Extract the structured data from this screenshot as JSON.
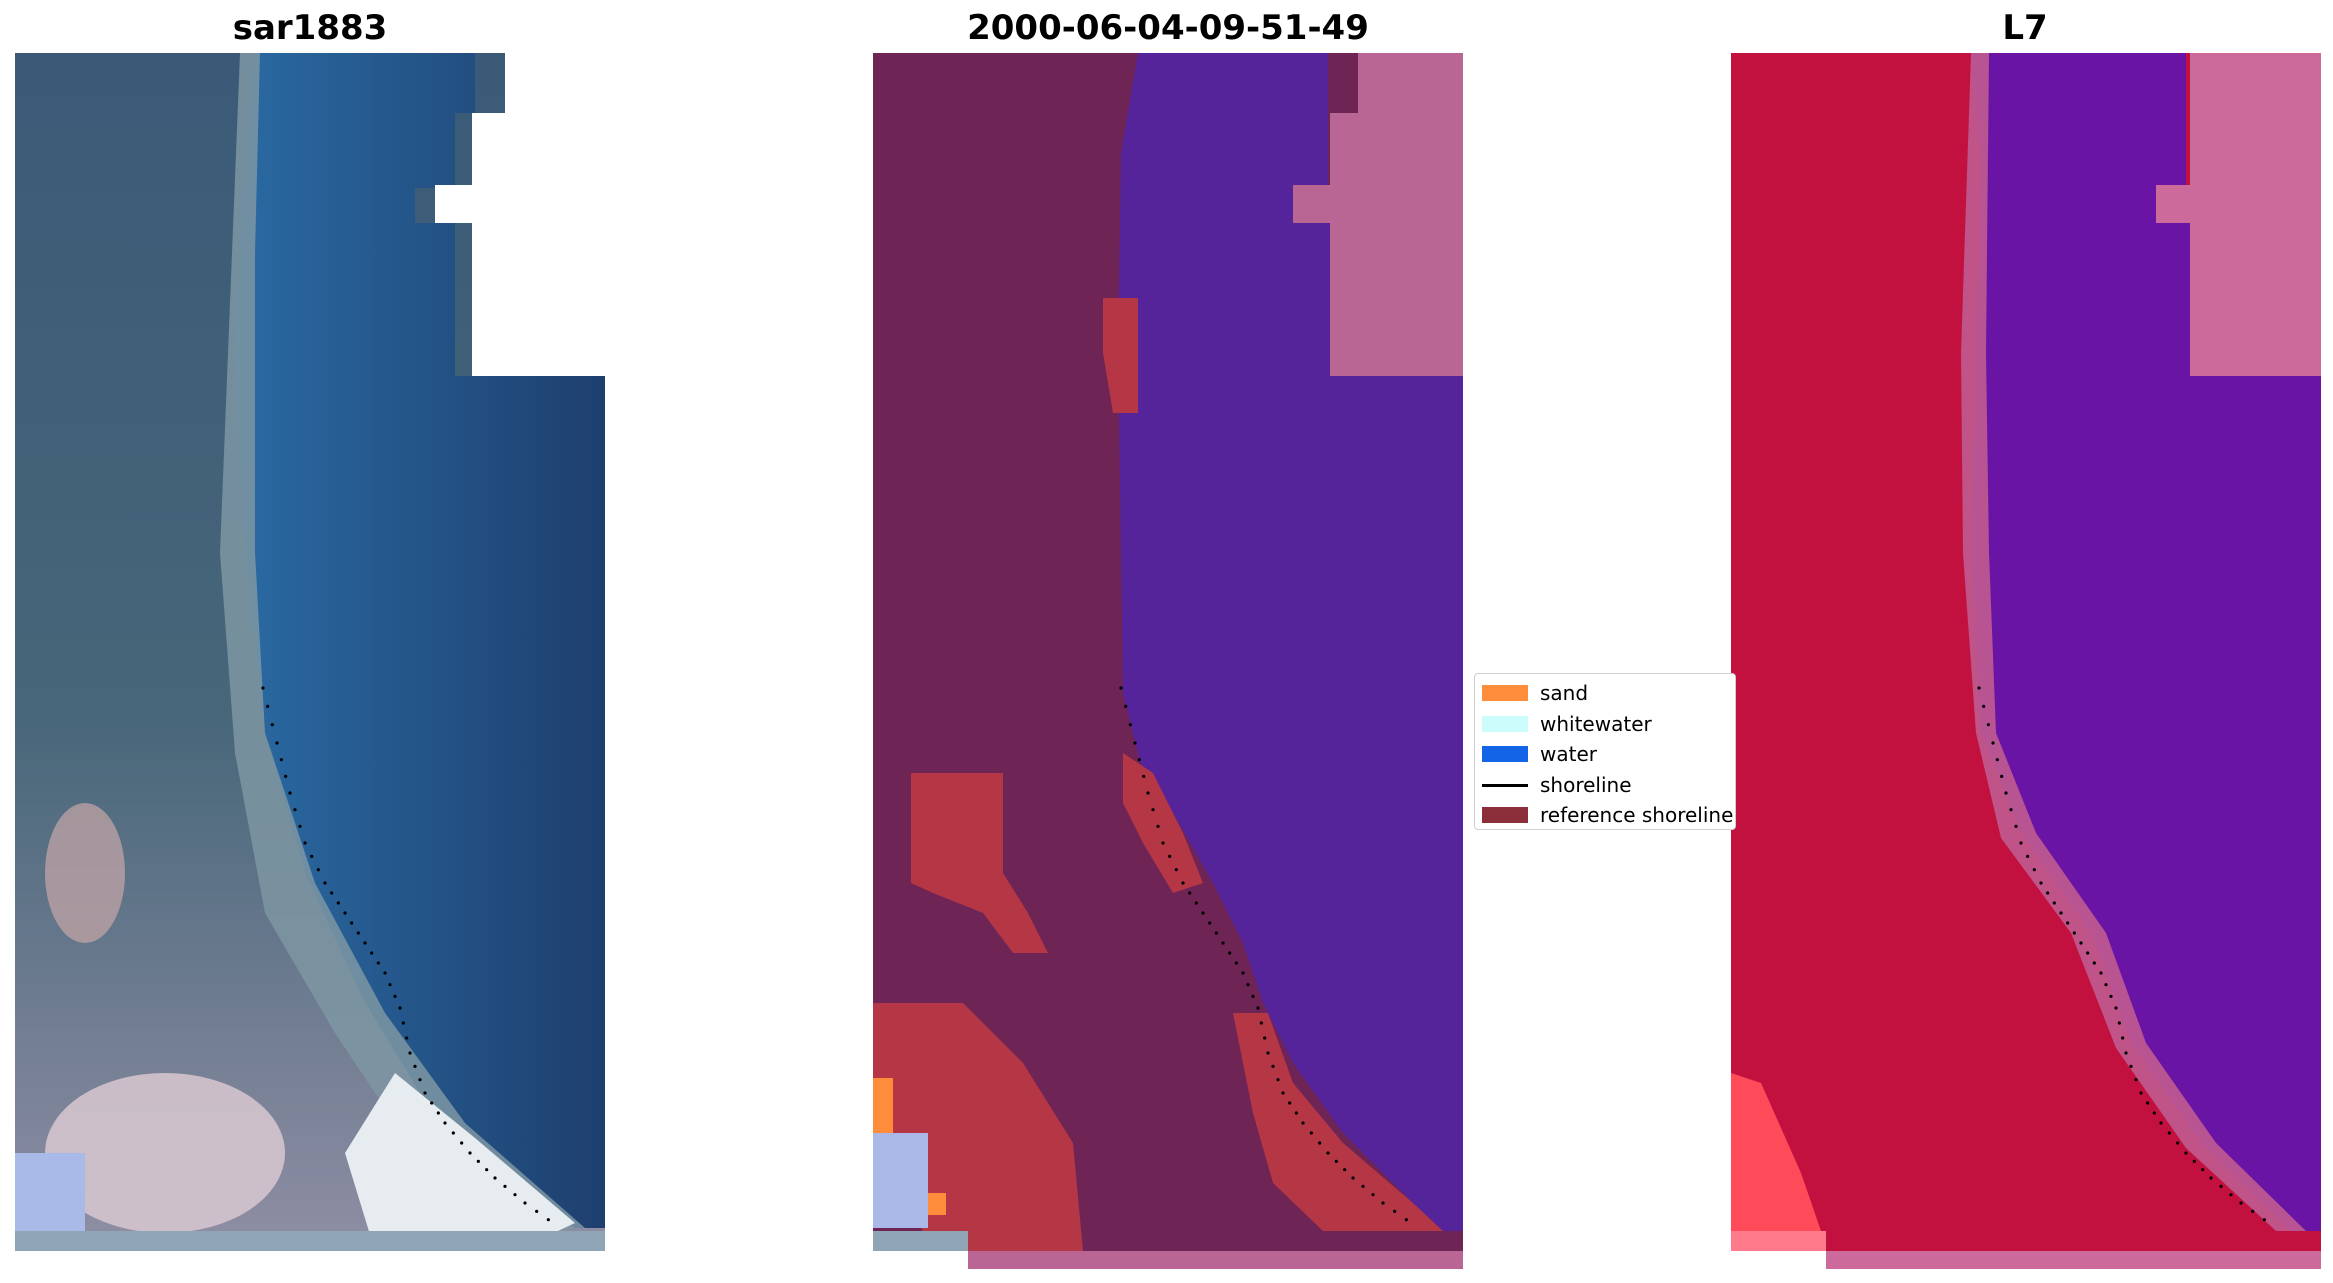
{
  "panels": [
    {
      "id": "rgb",
      "title": "sar1883"
    },
    {
      "id": "classified",
      "title": "2000-06-04-09-51-49"
    },
    {
      "id": "mndwi",
      "title": "L7"
    }
  ],
  "legend": {
    "items": [
      {
        "label": "sand",
        "kind": "swatch",
        "color": "#ff8c3a"
      },
      {
        "label": "whitewater",
        "kind": "swatch",
        "color": "#ccfcfc"
      },
      {
        "label": "water",
        "kind": "swatch",
        "color": "#1464e8"
      },
      {
        "label": "shoreline",
        "kind": "line",
        "color": "#000000"
      },
      {
        "label": "reference shoreline",
        "kind": "swatch",
        "color": "#8b2e3a"
      }
    ]
  },
  "colors": {
    "rgb_land": "#3e5a72",
    "rgb_water": "#1f5a95",
    "rgb_deep": "#1e3f6e",
    "class_land": "#6e2455",
    "class_water": "#55239a",
    "class_sand": "#b53645",
    "class_nodata": "#b96694",
    "index_land": "#c2113f",
    "index_water": "#6a14a6",
    "index_nodata": "#cc6a9c"
  }
}
